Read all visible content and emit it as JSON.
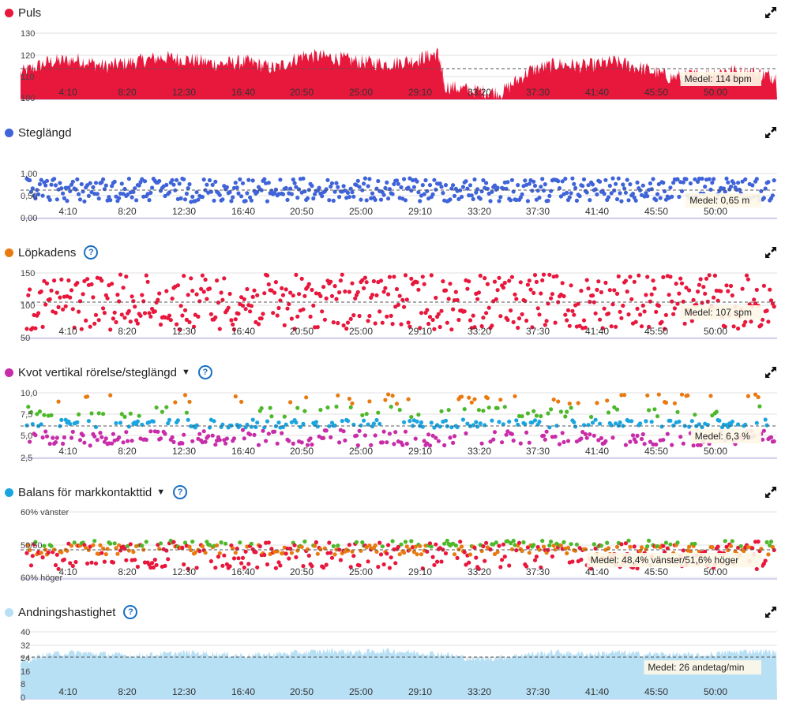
{
  "time_ticks": [
    "4:10",
    "8:20",
    "12:30",
    "16:40",
    "20:50",
    "25:00",
    "29:10",
    "33:20",
    "37:30",
    "41:40",
    "45:50",
    "50:00"
  ],
  "panels": [
    {
      "id": "puls",
      "title": "Puls",
      "color": "#e8173c",
      "help": false,
      "caret": false,
      "yticks": [
        "130",
        "120",
        "110",
        "100"
      ],
      "avg_label": "Medel: 114 bpm"
    },
    {
      "id": "steglangd",
      "title": "Steglängd",
      "color": "#3f63d9",
      "help": false,
      "caret": false,
      "yticks": [
        "1,00",
        "0,50",
        "0,00"
      ],
      "avg_label": "Medel: 0,65 m"
    },
    {
      "id": "lopkadens",
      "title": "Löpkadens",
      "color": "#e87a10",
      "help": true,
      "caret": false,
      "yticks": [
        "150",
        "100",
        "50"
      ],
      "avg_label": "Medel: 107 spm"
    },
    {
      "id": "kvot",
      "title": "Kvot vertikal rörelse/steglängd",
      "color": "#c82ca8",
      "help": true,
      "caret": true,
      "yticks": [
        "10,0",
        "7,5",
        "5,0",
        "2,5"
      ],
      "avg_label": "Medel: 6,3 %"
    },
    {
      "id": "balans",
      "title": "Balans för markkontakttid",
      "color": "#1ba5e0",
      "help": true,
      "caret": true,
      "yticks": [
        "60% vänster",
        "50/50",
        "60% höger"
      ],
      "avg_label": "Medel: 48,4% vänster/51,6% höger"
    },
    {
      "id": "andning",
      "title": "Andningshastighet",
      "color": "#b8e0f5",
      "help": true,
      "caret": false,
      "yticks": [
        "40",
        "32",
        "24",
        "16",
        "8",
        "0"
      ],
      "avg_label": "Medel: 26 andetag/min"
    }
  ],
  "chart_data": [
    {
      "type": "area",
      "title": "Puls",
      "x_unit": "min",
      "x_range": [
        0,
        53.5
      ],
      "ylim": [
        100,
        130
      ],
      "avg": 114,
      "color": "#e8173c",
      "x": [
        0,
        2,
        4,
        6,
        8,
        10,
        12,
        14,
        16,
        18,
        20,
        22,
        24,
        26,
        28,
        29.5,
        30,
        32,
        34,
        36,
        38,
        40,
        42,
        44,
        46,
        48,
        50,
        52,
        53.5
      ],
      "y": [
        112,
        117,
        118,
        115,
        117,
        119,
        118,
        116,
        117,
        114,
        120,
        119,
        117,
        116,
        118,
        121,
        106,
        104,
        103,
        113,
        116,
        115,
        117,
        114,
        110,
        111,
        113,
        112,
        110
      ]
    },
    {
      "type": "scatter",
      "title": "Steglängd",
      "x_unit": "min",
      "ylim": [
        0,
        1.1
      ],
      "avg": 0.65,
      "color": "#3f63d9"
    },
    {
      "type": "scatter",
      "title": "Löpkadens",
      "x_unit": "min",
      "ylim": [
        50,
        150
      ],
      "avg": 107,
      "color": "#e8173c"
    },
    {
      "type": "scatter",
      "title": "Kvot vertikal rörelse/steglängd",
      "x_unit": "min",
      "ylim": [
        2.5,
        10
      ],
      "avg": 6.3,
      "series_colors": [
        "#c82ca8",
        "#1ba5e0",
        "#4db82a",
        "#e87a10"
      ]
    },
    {
      "type": "scatter",
      "title": "Balans för markkontakttid",
      "x_unit": "min",
      "avg_left_pct": 48.4,
      "series_colors": [
        "#e8173c",
        "#e87a10",
        "#4db82a"
      ]
    },
    {
      "type": "area",
      "title": "Andningshastighet",
      "x_unit": "min",
      "ylim": [
        0,
        40
      ],
      "avg": 26,
      "color": "#b8e0f5",
      "x": [
        0,
        2,
        4,
        6,
        8,
        10,
        12,
        14,
        16,
        18,
        20,
        22,
        24,
        26,
        28,
        30,
        32,
        34,
        36,
        38,
        40,
        42,
        44,
        46,
        48,
        50,
        52,
        53.5
      ],
      "y": [
        22,
        27,
        28,
        27,
        26,
        27,
        28,
        27,
        26,
        27,
        28,
        29,
        28,
        29,
        28,
        27,
        24,
        25,
        27,
        28,
        27,
        28,
        27,
        27,
        26,
        28,
        29,
        28
      ]
    }
  ]
}
